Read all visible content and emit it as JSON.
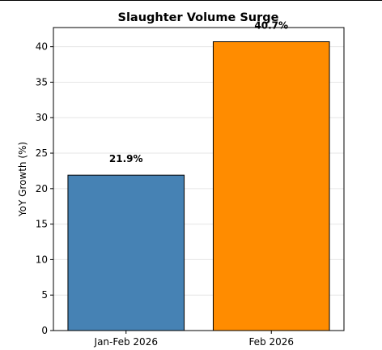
{
  "chart_data": {
    "type": "bar",
    "title": "Slaughter Volume Surge",
    "xlabel": "",
    "ylabel": "YoY Growth (%)",
    "categories": [
      "Jan-Feb 2026",
      "Feb 2026"
    ],
    "values": [
      21.9,
      40.7
    ],
    "data_labels": [
      "21.9%",
      "40.7%"
    ],
    "colors": [
      "#4682b4",
      "#ff8c00"
    ],
    "edge_color": "#000000",
    "ylim": [
      0,
      42.7
    ],
    "yticks": [
      0,
      5,
      10,
      15,
      20,
      25,
      30,
      35,
      40
    ],
    "ytick_labels": [
      "0",
      "5",
      "10",
      "15",
      "20",
      "25",
      "30",
      "35",
      "40"
    ],
    "grid": "y-major",
    "grid_color": "#e6e6e6",
    "legend": "none"
  }
}
